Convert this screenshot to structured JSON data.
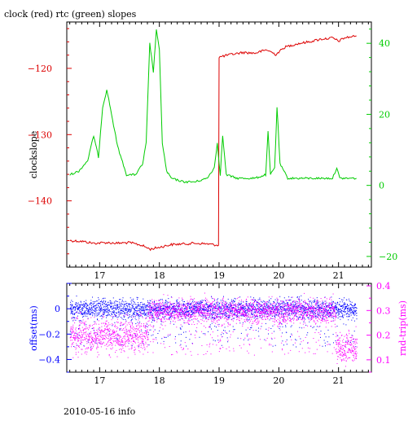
{
  "page": {
    "title": "clock (red) rtc (green) slopes",
    "footer": "2010-05-16 info"
  },
  "colors": {
    "clock": "#dd0000",
    "rtc": "#00cc00",
    "offset": "#0000ff",
    "rndtrip": "#ff00ff",
    "axis": "#000000"
  },
  "chart_data": [
    {
      "type": "line",
      "title": "clock (red) rtc (green) slopes",
      "xlim": [
        16.45,
        21.55
      ],
      "x_ticks": [
        17,
        18,
        19,
        20,
        21
      ],
      "ylabel": "clockslope",
      "ylim_left": [
        -150,
        -113
      ],
      "yticks_left": [
        -140,
        -130,
        -120
      ],
      "ylim_right": [
        -23,
        46
      ],
      "yticks_right": [
        -20,
        0,
        20,
        40
      ],
      "grid": false,
      "series": [
        {
          "name": "clock",
          "axis": "left",
          "color": "#dd0000",
          "points": [
            [
              16.5,
              -146.0
            ],
            [
              16.7,
              -146.1
            ],
            [
              16.9,
              -146.4
            ],
            [
              17.1,
              -146.3
            ],
            [
              17.3,
              -146.4
            ],
            [
              17.5,
              -146.3
            ],
            [
              17.7,
              -146.7
            ],
            [
              17.85,
              -147.3
            ],
            [
              18.0,
              -147.0
            ],
            [
              18.2,
              -146.6
            ],
            [
              18.4,
              -146.5
            ],
            [
              18.6,
              -146.4
            ],
            [
              18.8,
              -146.5
            ],
            [
              18.99,
              -146.7
            ],
            [
              19.0,
              -118.3
            ],
            [
              19.2,
              -117.9
            ],
            [
              19.4,
              -117.6
            ],
            [
              19.6,
              -117.7
            ],
            [
              19.8,
              -117.2
            ],
            [
              19.95,
              -117.9
            ],
            [
              20.1,
              -116.8
            ],
            [
              20.3,
              -116.3
            ],
            [
              20.5,
              -116.0
            ],
            [
              20.7,
              -115.6
            ],
            [
              20.9,
              -115.4
            ],
            [
              21.0,
              -115.9
            ],
            [
              21.1,
              -115.4
            ],
            [
              21.3,
              -115.1
            ]
          ]
        },
        {
          "name": "rtc",
          "axis": "right",
          "color": "#00cc00",
          "points": [
            [
              16.5,
              3
            ],
            [
              16.65,
              4
            ],
            [
              16.8,
              7
            ],
            [
              16.9,
              14
            ],
            [
              16.98,
              8
            ],
            [
              17.05,
              22
            ],
            [
              17.12,
              27
            ],
            [
              17.2,
              20
            ],
            [
              17.3,
              11
            ],
            [
              17.45,
              3
            ],
            [
              17.6,
              3
            ],
            [
              17.72,
              6
            ],
            [
              17.78,
              12
            ],
            [
              17.84,
              40
            ],
            [
              17.9,
              32
            ],
            [
              17.95,
              44
            ],
            [
              18.0,
              38
            ],
            [
              18.05,
              12
            ],
            [
              18.12,
              4
            ],
            [
              18.2,
              2
            ],
            [
              18.4,
              1
            ],
            [
              18.6,
              1
            ],
            [
              18.8,
              2
            ],
            [
              18.92,
              5
            ],
            [
              18.97,
              12
            ],
            [
              19.02,
              3
            ],
            [
              19.06,
              14
            ],
            [
              19.12,
              3
            ],
            [
              19.3,
              2
            ],
            [
              19.6,
              2
            ],
            [
              19.78,
              3
            ],
            [
              19.82,
              15
            ],
            [
              19.86,
              3
            ],
            [
              19.93,
              5
            ],
            [
              19.97,
              22
            ],
            [
              20.02,
              6
            ],
            [
              20.15,
              2
            ],
            [
              20.4,
              2
            ],
            [
              20.6,
              2
            ],
            [
              20.9,
              2
            ],
            [
              20.97,
              5
            ],
            [
              21.02,
              2
            ],
            [
              21.3,
              2
            ]
          ]
        }
      ]
    },
    {
      "type": "scatter",
      "xlim": [
        16.45,
        21.55
      ],
      "x_ticks": [
        17,
        18,
        19,
        20,
        21
      ],
      "ylabel_left": "offset(ms)",
      "ylim_left": [
        -0.5,
        0.2
      ],
      "yticks_left": [
        -0.4,
        -0.2,
        0
      ],
      "ylabel_right": "rnd-trip(ms)",
      "ylim_right": [
        0.05,
        0.41
      ],
      "yticks_right": [
        0.1,
        0.2,
        0.3,
        0.4
      ],
      "series": [
        {
          "name": "offset",
          "axis": "left",
          "color": "#0000ff",
          "segments": [
            {
              "x_start": 16.5,
              "x_end": 21.3,
              "center": 0.0,
              "spread": 0.035,
              "outlier_low": -0.3,
              "outlier_high": 0.1
            }
          ]
        },
        {
          "name": "rnd-trip",
          "axis": "right",
          "color": "#ff00ff",
          "segments": [
            {
              "x_start": 16.5,
              "x_end": 17.8,
              "center": 0.2,
              "spread": 0.03,
              "outlier_low": 0.11,
              "outlier_high": 0.3
            },
            {
              "x_start": 17.8,
              "x_end": 20.95,
              "center": 0.3,
              "spread": 0.025,
              "outlier_low": 0.12,
              "outlier_high": 0.33
            },
            {
              "x_start": 20.95,
              "x_end": 21.3,
              "center": 0.15,
              "spread": 0.03,
              "outlier_low": 0.11,
              "outlier_high": 0.22
            }
          ]
        }
      ]
    }
  ]
}
